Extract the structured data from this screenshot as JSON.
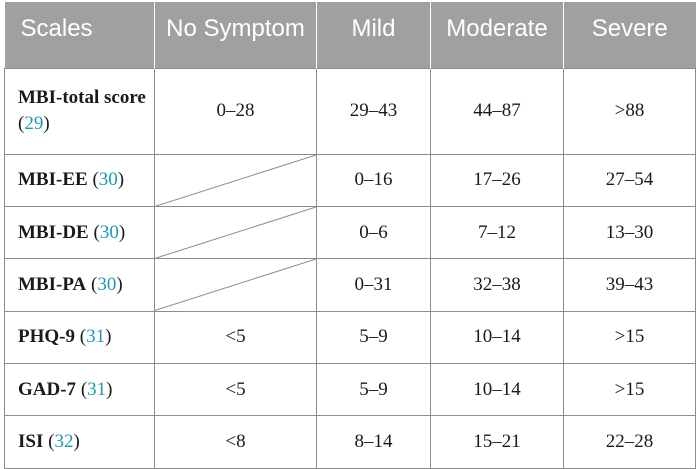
{
  "table": {
    "headers": [
      "Scales",
      "No Symptom",
      "Mild",
      "Moderate",
      "Severe"
    ],
    "rows": [
      {
        "scale": "MBI-total score",
        "ref": "29",
        "values": [
          "0–28",
          "29–43",
          "44–87",
          ">88"
        ]
      },
      {
        "scale": "MBI-EE",
        "ref": "30",
        "values": [
          "",
          "0–16",
          "17–26",
          "27–54"
        ]
      },
      {
        "scale": "MBI-DE",
        "ref": "30",
        "values": [
          "",
          "0–6",
          "7–12",
          "13–30"
        ]
      },
      {
        "scale": "MBI-PA",
        "ref": "30",
        "values": [
          "",
          "0–31",
          "32–38",
          "39–43"
        ]
      },
      {
        "scale": "PHQ-9",
        "ref": "31",
        "values": [
          "<5",
          "5–9",
          "10–14",
          ">15"
        ]
      },
      {
        "scale": "GAD-7",
        "ref": "31",
        "values": [
          "<5",
          "5–9",
          "10–14",
          ">15"
        ]
      },
      {
        "scale": "ISI",
        "ref": "32",
        "values": [
          "<8",
          "8–14",
          "15–21",
          "22–28"
        ]
      }
    ]
  },
  "colors": {
    "header_bg": "#a0a0a0",
    "header_text": "#ffffff",
    "reference_link": "#1a9bb3",
    "border": "#8c8c8c"
  }
}
